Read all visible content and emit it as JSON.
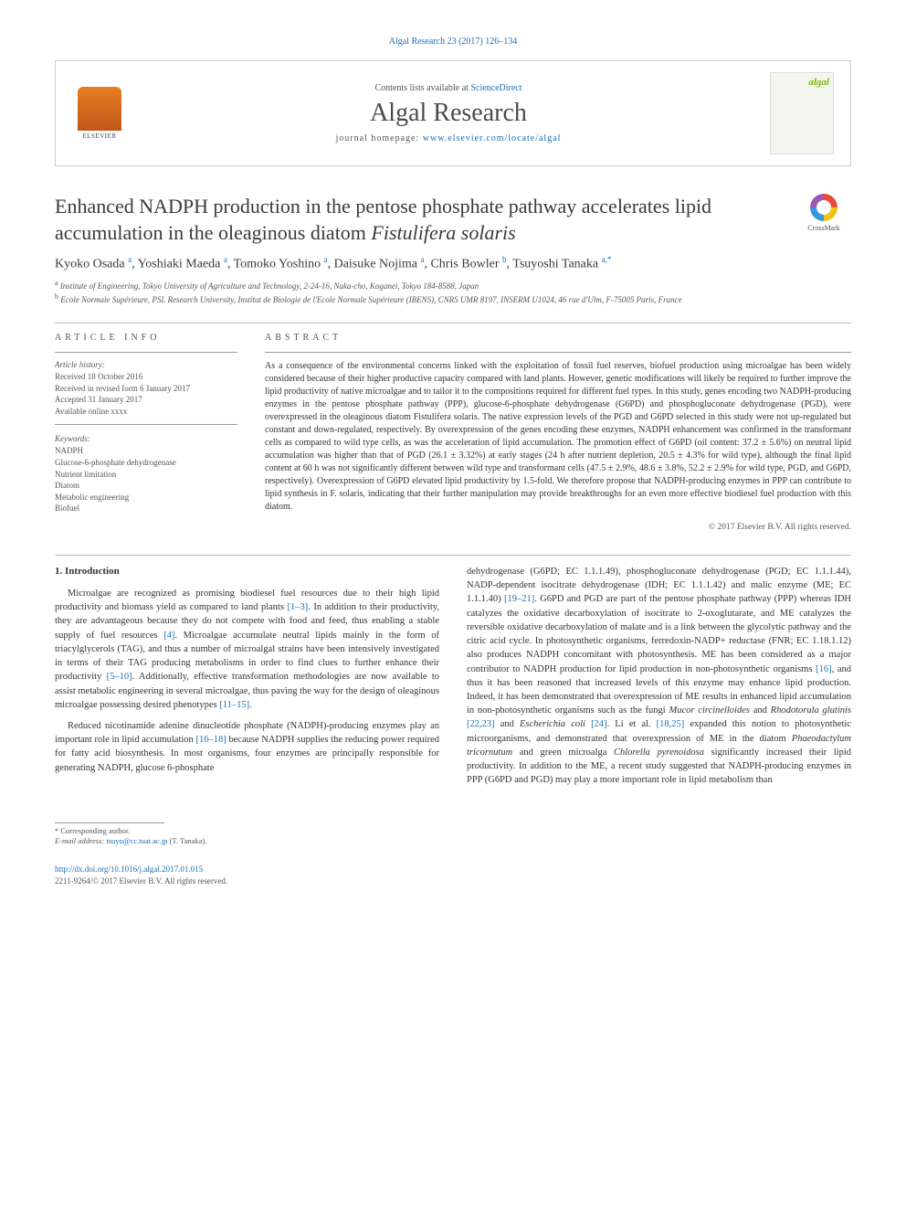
{
  "colors": {
    "link": "#1a6fb5",
    "text": "#333333",
    "muted": "#555555",
    "border": "#cccccc",
    "elsevier_orange": "#e67e22",
    "algal_green": "#7ab800",
    "background": "#ffffff"
  },
  "typography": {
    "body_fontsize": 12,
    "title_fontsize": 22,
    "journal_fontsize": 28,
    "abstract_fontsize": 10,
    "small_fontsize": 9
  },
  "top_citation": "Algal Research 23 (2017) 126–134",
  "header": {
    "publisher_name": "ELSEVIER",
    "contents_prefix": "Contents lists available at ",
    "contents_link": "ScienceDirect",
    "journal_name": "Algal Research",
    "homepage_prefix": "journal homepage: ",
    "homepage_url": "www.elsevier.com/locate/algal",
    "cover_logo": "algal"
  },
  "crossmark_label": "CrossMark",
  "article": {
    "title_part1": "Enhanced NADPH production in the pentose phosphate pathway accelerates lipid accumulation in the oleaginous diatom ",
    "title_species": "Fistulifera solaris",
    "authors_html": "Kyoko Osada <sup>a</sup>, Yoshiaki Maeda <sup>a</sup>, Tomoko Yoshino <sup>a</sup>, Daisuke Nojima <sup>a</sup>, Chris Bowler <sup>b</sup>, Tsuyoshi Tanaka <sup>a,*</sup>",
    "affiliations": [
      {
        "sup": "a",
        "text": "Institute of Engineering, Tokyo University of Agriculture and Technology, 2-24-16, Naka-cho, Koganei, Tokyo 184-8588, Japan"
      },
      {
        "sup": "b",
        "text": "Ecole Normale Supérieure, PSL Research University, Institut de Biologie de l'Ecole Normale Supérieure (IBENS), CNRS UMR 8197, INSERM U1024, 46 rue d'Ulm, F-75005 Paris, France"
      }
    ]
  },
  "article_info": {
    "label": "ARTICLE INFO",
    "history_label": "Article history:",
    "history": [
      "Received 18 October 2016",
      "Received in revised form 6 January 2017",
      "Accepted 31 January 2017",
      "Available online xxxx"
    ],
    "keywords_label": "Keywords:",
    "keywords": [
      "NADPH",
      "Glucose-6-phosphate dehydrogenase",
      "Nutrient limitation",
      "Diatom",
      "Metabolic engineering",
      "Biofuel"
    ]
  },
  "abstract": {
    "label": "ABSTRACT",
    "text": "As a consequence of the environmental concerns linked with the exploitation of fossil fuel reserves, biofuel production using microalgae has been widely considered because of their higher productive capacity compared with land plants. However, genetic modifications will likely be required to further improve the lipid productivity of native microalgae and to tailor it to the compositions required for different fuel types. In this study, genes encoding two NADPH-producing enzymes in the pentose phosphate pathway (PPP), glucose-6-phosphate dehydrogenase (G6PD) and phosphogluconate dehydrogenase (PGD), were overexpressed in the oleaginous diatom Fistulifera solaris. The native expression levels of the PGD and G6PD selected in this study were not up-regulated but constant and down-regulated, respectively. By overexpression of the genes encoding these enzymes, NADPH enhancement was confirmed in the transformant cells as compared to wild type cells, as was the acceleration of lipid accumulation. The promotion effect of G6PD (oil content: 37.2 ± 5.6%) on neutral lipid accumulation was higher than that of PGD (26.1 ± 3.32%) at early stages (24 h after nutrient depletion, 20.5 ± 4.3% for wild type), although the final lipid content at 60 h was not significantly different between wild type and transformant cells (47.5 ± 2.9%, 48.6 ± 3.8%, 52.2 ± 2.9% for wild type, PGD, and G6PD, respectively). Overexpression of G6PD elevated lipid productivity by 1.5-fold. We therefore propose that NADPH-producing enzymes in PPP can contribute to lipid synthesis in F. solaris, indicating that their further manipulation may provide breakthroughs for an even more effective biodiesel fuel production with this diatom.",
    "copyright": "© 2017 Elsevier B.V. All rights reserved."
  },
  "body": {
    "heading": "1. Introduction",
    "col1_p1": "Microalgae are recognized as promising biodiesel fuel resources due to their high lipid productivity and biomass yield as compared to land plants [1–3]. In addition to their productivity, they are advantageous because they do not compete with food and feed, thus enabling a stable supply of fuel resources [4]. Microalgae accumulate neutral lipids mainly in the form of triacylglycerols (TAG), and thus a number of microalgal strains have been intensively investigated in terms of their TAG producing metabolisms in order to find clues to further enhance their productivity [5–10]. Additionally, effective transformation methodologies are now available to assist metabolic engineering in several microalgae, thus paving the way for the design of oleaginous microalgae possessing desired phenotypes [11–15].",
    "col1_p2": "Reduced nicotinamide adenine dinucleotide phosphate (NADPH)-producing enzymes play an important role in lipid accumulation [16–18] because NADPH supplies the reducing power required for fatty acid biosynthesis. In most organisms, four enzymes are principally responsible for generating NADPH, glucose 6-phosphate",
    "col2_p1": "dehydrogenase (G6PD; EC 1.1.1.49), phosphogluconate dehydrogenase (PGD; EC 1.1.1.44), NADP-dependent isocitrate dehydrogenase (IDH; EC 1.1.1.42) and malic enzyme (ME; EC 1.1.1.40) [19–21]. G6PD and PGD are part of the pentose phosphate pathway (PPP) whereas IDH catalyzes the oxidative decarboxylation of isocitrate to 2-oxoglutarate, and ME catalyzes the reversible oxidative decarboxylation of malate and is a link between the glycolytic pathway and the citric acid cycle. In photosynthetic organisms, ferredoxin-NADP+ reductase (FNR; EC 1.18.1.12) also produces NADPH concomitant with photosynthesis. ME has been considered as a major contributor to NADPH production for lipid production in non-photosynthetic organisms [16], and thus it has been reasoned that increased levels of this enzyme may enhance lipid production. Indeed, it has been demonstrated that overexpression of ME results in enhanced lipid accumulation in non-photosynthetic organisms such as the fungi Mucor circinelloides and Rhodotorula glutinis [22,23] and Escherichia coli [24]. Li et al. [18,25] expanded this notion to photosynthetic microorganisms, and demonstrated that overexpression of ME in the diatom Phaeodactylum tricornutum and green microalga Chlorella pyrenoidosa significantly increased their lipid productivity. In addition to the ME, a recent study suggested that NADPH-producing enzymes in PPP (G6PD and PGD) may play a more important role in lipid metabolism than"
  },
  "footer": {
    "corr_label": "* Corresponding author.",
    "email_label": "E-mail address: ",
    "email": "tsuyo@cc.tuat.ac.jp",
    "email_person": " (T. Tanaka).",
    "doi": "http://dx.doi.org/10.1016/j.algal.2017.01.015",
    "issn_line": "2211-9264/© 2017 Elsevier B.V. All rights reserved."
  }
}
